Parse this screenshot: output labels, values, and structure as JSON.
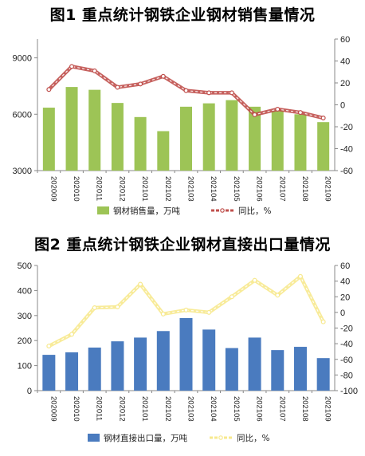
{
  "chart_data": [
    {
      "type": "bar",
      "title": "图1  重点统计钢铁企业钢材销售量情况",
      "categories": [
        "202009",
        "202010",
        "202011",
        "202012",
        "202101",
        "202102",
        "202103",
        "202104",
        "202105",
        "202106",
        "202107",
        "202108",
        "202109"
      ],
      "series": [
        {
          "name": "钢材销售量，万吨",
          "type": "bar",
          "axis": "left",
          "color": "#9dc456",
          "values": [
            6350,
            7450,
            7300,
            6600,
            5850,
            5100,
            6400,
            6580,
            6750,
            6400,
            6230,
            6000,
            5580
          ]
        },
        {
          "name": "同比，%",
          "type": "line",
          "axis": "right",
          "color": "#c0504d",
          "line_style": "dashed-with-dots",
          "values": [
            14,
            35,
            31,
            16,
            19,
            26,
            13,
            11,
            11,
            -9,
            -4,
            -7,
            -12
          ]
        }
      ],
      "y_left": {
        "min": 3000,
        "max": 10000,
        "ticks": [
          3000,
          6000,
          9000
        ]
      },
      "y_right": {
        "min": -60,
        "max": 60,
        "ticks": [
          -60,
          -40,
          -20,
          0,
          20,
          40,
          60
        ]
      },
      "grid": false,
      "legend": "bottom"
    },
    {
      "type": "bar",
      "title": "图2  重点统计钢铁企业钢材直接出口量情况",
      "categories": [
        "202009",
        "202010",
        "202011",
        "202012",
        "202101",
        "202102",
        "202103",
        "202104",
        "202105",
        "202106",
        "202107",
        "202108",
        "202109"
      ],
      "series": [
        {
          "name": "钢材直接出口量，万吨",
          "type": "bar",
          "axis": "left",
          "color": "#4a7bbf",
          "values": [
            143,
            153,
            172,
            197,
            212,
            238,
            290,
            244,
            170,
            212,
            162,
            175,
            130
          ]
        },
        {
          "name": "同比，%",
          "type": "line",
          "axis": "right",
          "color": "#f7e98e",
          "line_style": "dashed-with-dots",
          "values": [
            -43,
            -28,
            6,
            7,
            36,
            -2,
            3,
            0,
            20,
            41,
            22,
            46,
            -12
          ]
        }
      ],
      "y_left": {
        "min": 0,
        "max": 500,
        "ticks": [
          0,
          100,
          200,
          300,
          400,
          500
        ]
      },
      "y_right": {
        "min": -100,
        "max": 60,
        "ticks": [
          -100,
          -80,
          -60,
          -40,
          -20,
          0,
          20,
          40,
          60
        ]
      },
      "grid": false,
      "legend": "bottom"
    }
  ]
}
